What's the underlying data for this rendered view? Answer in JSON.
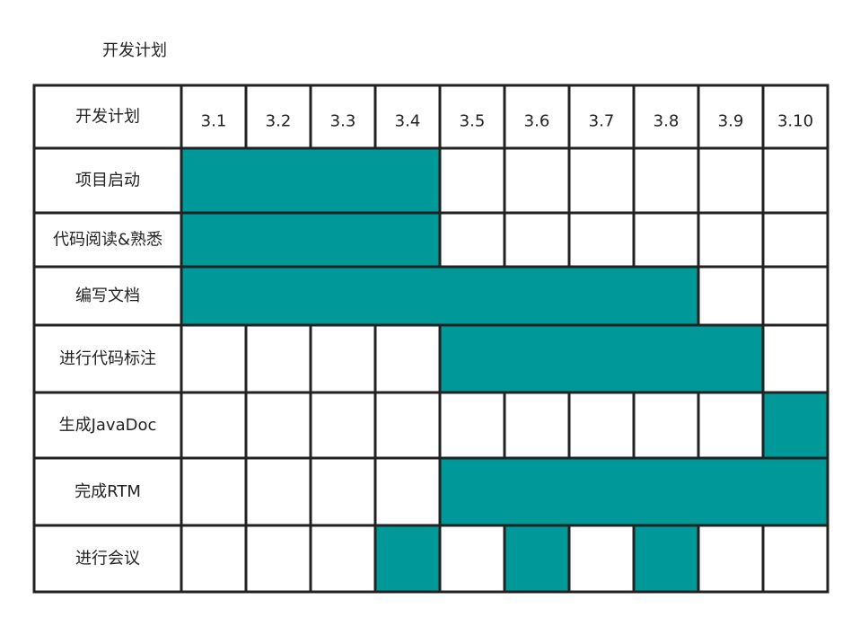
{
  "title": "开发计划",
  "chart_data": {
    "type": "gantt",
    "corner_label": "开发计划",
    "periods": [
      "3.1",
      "3.2",
      "3.3",
      "3.4",
      "3.5",
      "3.6",
      "3.7",
      "3.8",
      "3.9",
      "3.10"
    ],
    "tasks": [
      {
        "name": "项目启动",
        "spans": [
          [
            0,
            4
          ]
        ]
      },
      {
        "name": "代码阅读&熟悉",
        "spans": [
          [
            0,
            4
          ]
        ]
      },
      {
        "name": "编写文档",
        "spans": [
          [
            0,
            8
          ]
        ]
      },
      {
        "name": "进行代码标注",
        "spans": [
          [
            4,
            9
          ]
        ]
      },
      {
        "name": "生成JavaDoc",
        "spans": [
          [
            9,
            10
          ]
        ]
      },
      {
        "name": "完成RTM",
        "spans": [
          [
            4,
            10
          ]
        ]
      },
      {
        "name": "进行会议",
        "spans": [
          [
            3,
            4
          ],
          [
            5,
            6
          ],
          [
            7,
            8
          ]
        ]
      }
    ],
    "bar_color": "#00999a"
  }
}
